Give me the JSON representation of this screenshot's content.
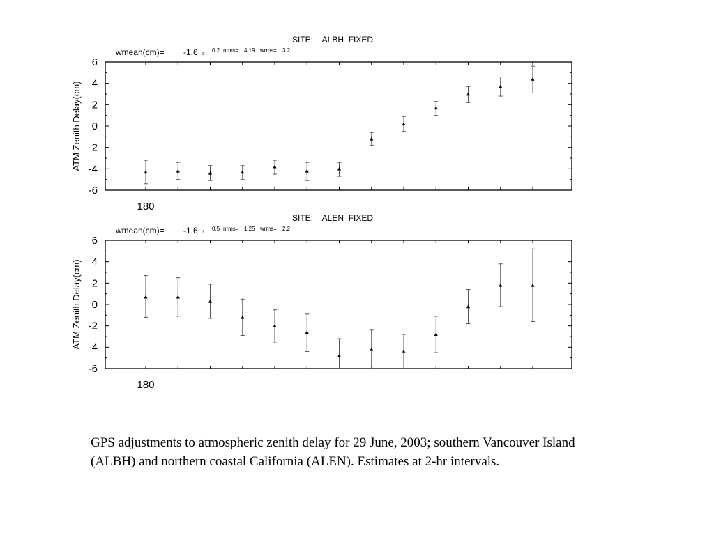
{
  "chart_data": [
    {
      "type": "scatter",
      "title": "SITE:    ALBH  FIXED",
      "stats": {
        "wmean_label": "wmean(cm)=",
        "wmean_value": "-1.6",
        "sep": "±",
        "wmean_err": "0.2",
        "nrms_label": "nrms=",
        "nrms_value": "4.19",
        "wrms_label": "wrms=",
        "wrms_value": "3.2"
      },
      "ylabel": "ATM Zenith Delay(cm)",
      "xlabel": "",
      "ylim": [
        -6,
        6
      ],
      "yticks": [
        "6",
        "4",
        "2",
        "0",
        "-2",
        "-4",
        "-6"
      ],
      "xtick_label": "180",
      "error_bars": true,
      "x": [
        1,
        2,
        3,
        4,
        5,
        6,
        7,
        8,
        9,
        10,
        11,
        12,
        13
      ],
      "y": [
        -4.3,
        -4.2,
        -4.4,
        -4.3,
        -3.8,
        -4.2,
        -4.0,
        -1.2,
        0.2,
        1.7,
        3.0,
        3.7,
        4.4
      ],
      "yerr_low": [
        1.1,
        0.8,
        0.7,
        0.7,
        0.7,
        0.9,
        0.7,
        0.6,
        0.7,
        0.7,
        0.8,
        0.9,
        1.3
      ],
      "yerr_high": [
        1.1,
        0.8,
        0.7,
        0.6,
        0.6,
        0.8,
        0.6,
        0.6,
        0.7,
        0.6,
        0.7,
        0.9,
        1.2
      ]
    },
    {
      "type": "scatter",
      "title": "SITE:    ALEN  FIXED",
      "stats": {
        "wmean_label": "wmean(cm)=",
        "wmean_value": "-1.6",
        "sep": "±",
        "wmean_err": "0.5",
        "nrms_label": "nrms=",
        "nrms_value": "1.25",
        "wrms_label": "wrms=",
        "wrms_value": "2.2"
      },
      "ylabel": "ATM Zenith Delay(cm)",
      "xlabel": "",
      "ylim": [
        -6,
        6
      ],
      "yticks": [
        "6",
        "4",
        "2",
        "0",
        "-2",
        "-4",
        "-6"
      ],
      "xtick_label": "180",
      "error_bars": true,
      "x": [
        1,
        2,
        3,
        4,
        5,
        6,
        7,
        8,
        9,
        10,
        11,
        12,
        13
      ],
      "y": [
        0.7,
        0.7,
        0.3,
        -1.2,
        -2.0,
        -2.6,
        -4.8,
        -4.2,
        -4.4,
        -2.8,
        -0.2,
        1.8,
        1.8
      ],
      "yerr_low": [
        1.9,
        1.8,
        1.6,
        1.7,
        1.6,
        1.8,
        1.7,
        1.8,
        1.6,
        1.7,
        1.6,
        2.0,
        3.4
      ],
      "yerr_high": [
        2.0,
        1.8,
        1.6,
        1.7,
        1.5,
        1.7,
        1.6,
        1.8,
        1.6,
        1.7,
        1.6,
        2.0,
        3.4
      ]
    }
  ],
  "caption": "GPS adjustments to atmospheric zenith delay for 29 June, 2003; southern Vancouver Island (ALBH) and northern coastal California (ALEN). Estimates at 2-hr intervals."
}
